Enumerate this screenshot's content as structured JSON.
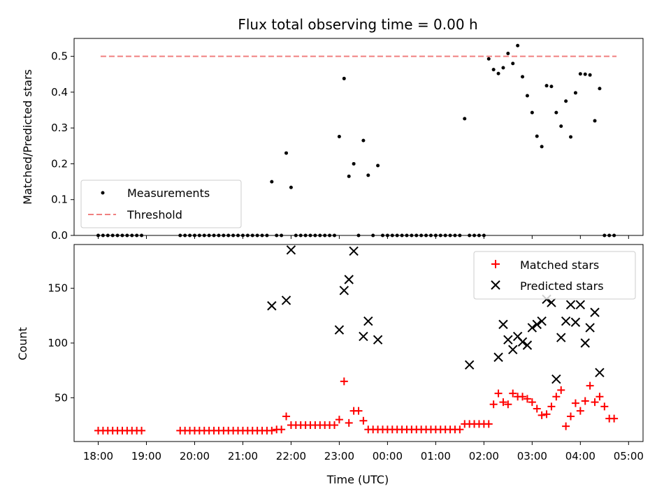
{
  "chart_data": [
    {
      "type": "scatter",
      "title": "Flux total observing time = 0.00 h",
      "xlabel": "",
      "ylabel": "Matched/Predicted stars",
      "ylim": [
        0,
        0.55
      ],
      "yticks": [
        "0.0",
        "0.1",
        "0.2",
        "0.3",
        "0.4",
        "0.5"
      ],
      "legend_placement": "lower-left",
      "series": [
        {
          "name": "Measurements",
          "marker": "dot",
          "color": "#000000",
          "x": [
            18.0,
            18.1,
            18.2,
            18.3,
            18.4,
            18.5,
            18.6,
            18.7,
            18.8,
            18.9,
            19.7,
            19.8,
            19.9,
            20.0,
            20.1,
            20.2,
            20.3,
            20.4,
            20.5,
            20.6,
            20.7,
            20.8,
            20.9,
            21.0,
            21.1,
            21.2,
            21.3,
            21.4,
            21.5,
            21.6,
            21.7,
            21.8,
            21.9,
            22.0,
            22.1,
            22.2,
            22.3,
            22.4,
            22.5,
            22.6,
            22.7,
            22.8,
            22.9,
            23.0,
            23.1,
            23.2,
            23.3,
            23.4,
            23.5,
            23.6,
            23.7,
            23.8,
            23.9,
            24.0,
            24.1,
            24.2,
            24.3,
            24.4,
            24.5,
            24.6,
            24.7,
            24.8,
            24.9,
            25.0,
            25.1,
            25.2,
            25.3,
            25.4,
            25.5,
            25.6,
            25.7,
            25.8,
            25.9,
            26.0,
            26.1,
            26.2,
            26.3,
            26.4,
            26.5,
            26.6,
            26.7,
            26.8,
            26.9,
            27.0,
            27.1,
            27.2,
            27.3,
            27.4,
            27.5,
            27.6,
            27.7,
            27.8,
            27.9,
            28.0,
            28.1,
            28.2,
            28.3,
            28.4,
            28.5,
            28.6,
            28.7
          ],
          "y": [
            0,
            0,
            0,
            0,
            0,
            0,
            0,
            0,
            0,
            0,
            0,
            0,
            0,
            0,
            0,
            0,
            0,
            0,
            0,
            0,
            0,
            0,
            0,
            0,
            0,
            0,
            0,
            0,
            0,
            0.15,
            0,
            0,
            0.23,
            0.134,
            0,
            0,
            0,
            0,
            0,
            0,
            0,
            0,
            0,
            0.276,
            0.438,
            0.165,
            0.2,
            0,
            0.265,
            0.168,
            0,
            0.195,
            0,
            0,
            0,
            0,
            0,
            0,
            0,
            0,
            0,
            0,
            0,
            0,
            0,
            0,
            0,
            0,
            0,
            0.326,
            0,
            0,
            0,
            0,
            0.493,
            0.463,
            0.452,
            0.468,
            0.508,
            0.48,
            0.53,
            0.443,
            0.39,
            0.343,
            0.277,
            0.248,
            0.418,
            0.416,
            0.343,
            0.305,
            0.375,
            0.275,
            0.398,
            0.451,
            0.45,
            0.448,
            0.32,
            0.41,
            0,
            0,
            0
          ]
        },
        {
          "name": "Threshold",
          "marker": "dashed-line",
          "color": "#f08080",
          "x": [
            18.05,
            28.75
          ],
          "y": [
            0.5,
            0.5
          ]
        }
      ]
    },
    {
      "type": "scatter",
      "title": "",
      "xlabel": "Time (UTC)",
      "ylabel": "Count",
      "ylim": [
        10,
        190
      ],
      "xlim": [
        17.5,
        29.3
      ],
      "yticks": [
        "50",
        "100",
        "150"
      ],
      "xticks": [
        "18:00",
        "19:00",
        "20:00",
        "21:00",
        "22:00",
        "23:00",
        "00:00",
        "01:00",
        "02:00",
        "03:00",
        "04:00",
        "05:00"
      ],
      "legend_placement": "upper-right",
      "series": [
        {
          "name": "Matched stars",
          "marker": "plus",
          "color": "#ff0000",
          "x": [
            18.0,
            18.1,
            18.2,
            18.3,
            18.4,
            18.5,
            18.6,
            18.7,
            18.8,
            18.9,
            19.7,
            19.8,
            19.9,
            20.0,
            20.1,
            20.2,
            20.3,
            20.4,
            20.5,
            20.6,
            20.7,
            20.8,
            20.9,
            21.0,
            21.1,
            21.2,
            21.3,
            21.4,
            21.5,
            21.6,
            21.7,
            21.8,
            21.9,
            22.0,
            22.1,
            22.2,
            22.3,
            22.4,
            22.5,
            22.6,
            22.7,
            22.8,
            22.9,
            23.0,
            23.1,
            23.2,
            23.3,
            23.4,
            23.5,
            23.6,
            23.7,
            23.8,
            23.9,
            24.0,
            24.1,
            24.2,
            24.3,
            24.4,
            24.5,
            24.6,
            24.7,
            24.8,
            24.9,
            25.0,
            25.1,
            25.2,
            25.3,
            25.4,
            25.5,
            25.6,
            25.7,
            25.8,
            25.9,
            26.0,
            26.1,
            26.2,
            26.3,
            26.4,
            26.5,
            26.6,
            26.7,
            26.8,
            26.9,
            27.0,
            27.1,
            27.2,
            27.3,
            27.4,
            27.5,
            27.6,
            27.7,
            27.8,
            27.9,
            28.0,
            28.1,
            28.2,
            28.3,
            28.4,
            28.5,
            28.6,
            28.7
          ],
          "y": [
            20,
            20,
            20,
            20,
            20,
            20,
            20,
            20,
            20,
            20,
            20,
            20,
            20,
            20,
            20,
            20,
            20,
            20,
            20,
            20,
            20,
            20,
            20,
            20,
            20,
            20,
            20,
            20,
            20,
            20,
            21,
            21,
            33,
            25,
            25,
            25,
            25,
            25,
            25,
            25,
            25,
            25,
            25,
            30,
            65,
            27,
            38,
            38,
            29,
            21,
            21,
            21,
            21,
            21,
            21,
            21,
            21,
            21,
            21,
            21,
            21,
            21,
            21,
            21,
            21,
            21,
            21,
            21,
            21,
            26,
            26,
            26,
            26,
            26,
            26,
            44,
            54,
            46,
            44,
            54,
            51,
            51,
            49,
            46,
            40,
            34,
            35,
            42,
            51,
            57,
            24,
            33,
            45,
            38,
            47,
            61,
            46,
            51,
            42,
            31,
            31
          ]
        },
        {
          "name": "Predicted stars",
          "marker": "x",
          "color": "#000000",
          "x": [
            21.6,
            21.9,
            22.0,
            23.0,
            23.1,
            23.2,
            23.3,
            23.5,
            23.6,
            23.8,
            25.7,
            26.3,
            26.4,
            26.5,
            26.6,
            26.7,
            26.8,
            26.9,
            27.0,
            27.1,
            27.2,
            27.3,
            27.4,
            27.5,
            27.6,
            27.7,
            27.8,
            27.9,
            28.0,
            28.1,
            28.2,
            28.3,
            28.4
          ],
          "y": [
            134,
            139,
            185,
            112,
            148,
            158,
            184,
            106,
            120,
            103,
            80,
            87,
            117,
            103,
            94,
            106,
            101,
            98,
            114,
            117,
            120,
            140,
            137,
            67,
            105,
            120,
            135,
            119,
            135,
            100,
            114,
            128,
            73
          ]
        }
      ]
    }
  ]
}
